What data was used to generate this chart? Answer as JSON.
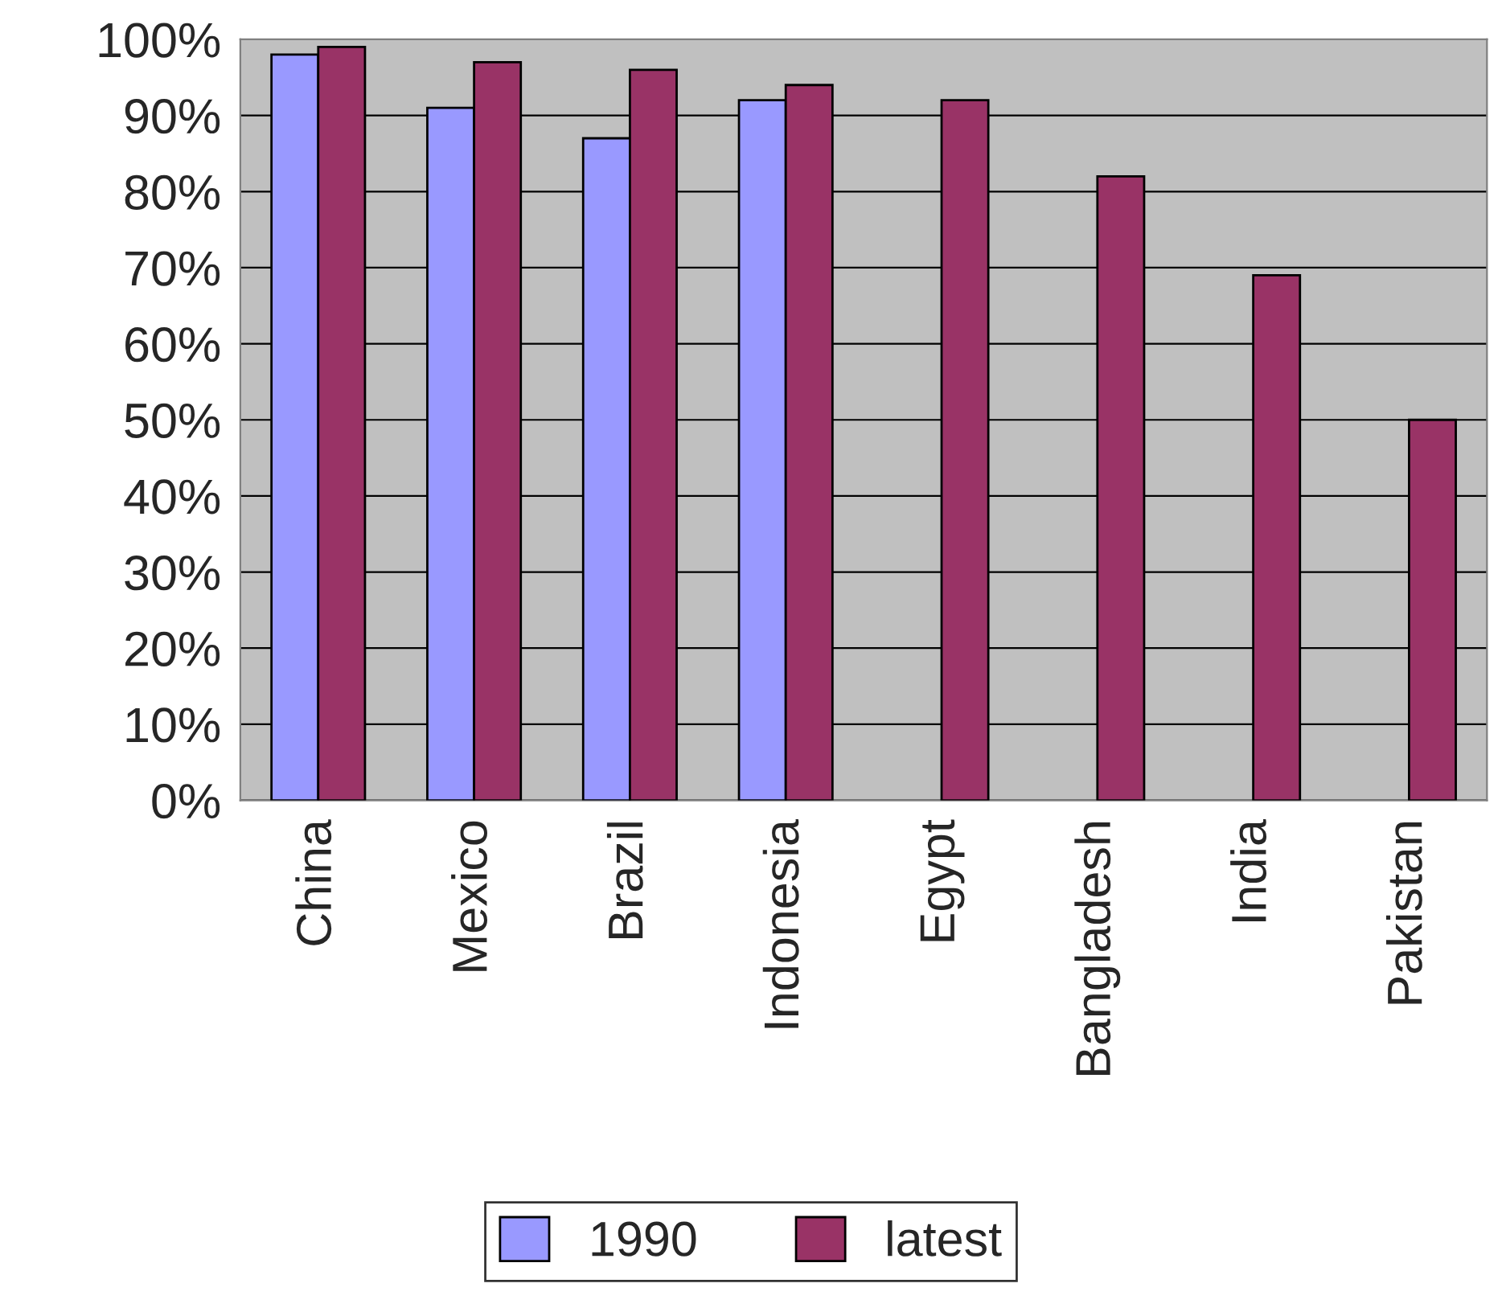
{
  "chart_data": {
    "type": "bar",
    "categories": [
      "China",
      "Mexico",
      "Brazil",
      "Indonesia",
      "Egypt",
      "Bangladesh",
      "India",
      "Pakistan"
    ],
    "series": [
      {
        "name": "1990",
        "color": "#9999ff",
        "values": [
          98,
          91,
          87,
          92,
          null,
          null,
          null,
          null
        ]
      },
      {
        "name": "latest",
        "color": "#993366",
        "values": [
          99,
          97,
          96,
          94,
          92,
          82,
          69,
          50
        ]
      }
    ],
    "ylim": [
      0,
      100
    ],
    "yticks": [
      {
        "value": 0,
        "label": "0%"
      },
      {
        "value": 10,
        "label": "10%"
      },
      {
        "value": 20,
        "label": "20%"
      },
      {
        "value": 30,
        "label": "30%"
      },
      {
        "value": 40,
        "label": "40%"
      },
      {
        "value": 50,
        "label": "50%"
      },
      {
        "value": 60,
        "label": "60%"
      },
      {
        "value": 70,
        "label": "70%"
      },
      {
        "value": 80,
        "label": "80%"
      },
      {
        "value": 90,
        "label": "90%"
      },
      {
        "value": 100,
        "label": "100%"
      }
    ],
    "grid": "y",
    "legend": "bottom"
  }
}
